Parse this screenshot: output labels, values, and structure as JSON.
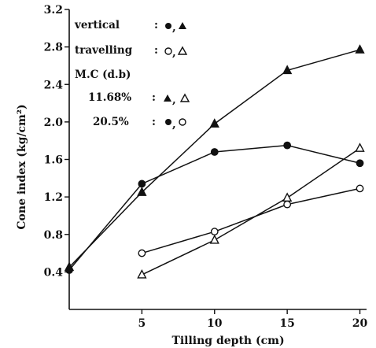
{
  "chart_data": {
    "type": "line",
    "xlabel": "Tilling depth (cm)",
    "ylabel": "Cone index (kg/cm²)",
    "x_ticks": [
      "5",
      "10",
      "15",
      "20"
    ],
    "x_tick_values": [
      5,
      10,
      15,
      20
    ],
    "y_ticks": [
      "0.4",
      "0.8",
      "1.2",
      "1.6",
      "2.0",
      "2.4",
      "2.8",
      "3.2"
    ],
    "y_tick_values": [
      0.4,
      0.8,
      1.2,
      1.6,
      2.0,
      2.4,
      2.8,
      3.2
    ],
    "xlim": [
      0,
      21
    ],
    "ylim": [
      0,
      3.2
    ],
    "grid": false,
    "legend_position": "top-left",
    "legend": {
      "vertical": {
        "label": "vertical",
        "colon": ":",
        "sep": ","
      },
      "travelling": {
        "label": "travelling",
        "colon": ":",
        "sep": ","
      },
      "mc": {
        "label": "M.C (d.b)"
      },
      "mc1": {
        "label": "11.68%",
        "colon": ":",
        "sep": ","
      },
      "mc2": {
        "label": "20.5%",
        "colon": ":",
        "sep": ","
      }
    },
    "series": [
      {
        "marker": "filled-triangle",
        "x": [
          0,
          5,
          10,
          15,
          20
        ],
        "y": [
          0.45,
          1.25,
          1.98,
          2.55,
          2.77
        ]
      },
      {
        "marker": "filled-circle",
        "x": [
          0,
          5,
          10,
          15,
          20
        ],
        "y": [
          0.42,
          1.34,
          1.68,
          1.75,
          1.56
        ]
      },
      {
        "marker": "open-triangle",
        "x": [
          5,
          10,
          15,
          20
        ],
        "y": [
          0.37,
          0.74,
          1.19,
          1.72
        ]
      },
      {
        "marker": "open-circle",
        "x": [
          5,
          10,
          15,
          20
        ],
        "y": [
          0.6,
          0.83,
          1.12,
          1.29
        ]
      }
    ]
  }
}
